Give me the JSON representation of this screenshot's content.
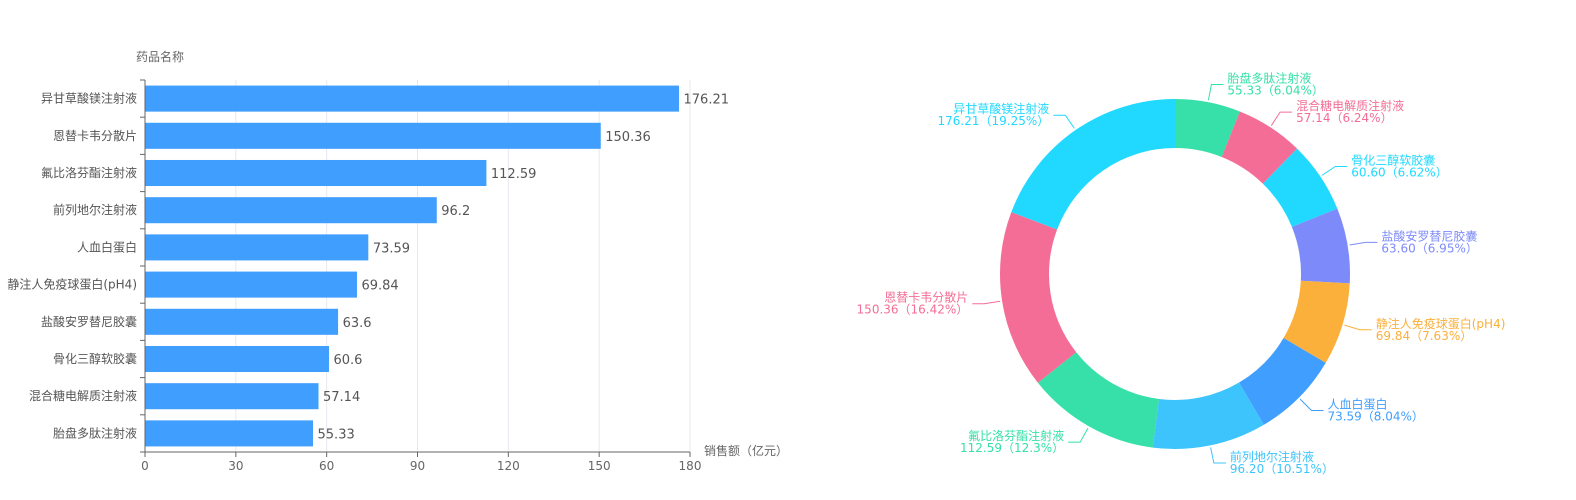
{
  "chart_data": [
    {
      "type": "bar",
      "orientation": "horizontal",
      "ylabel": "药品名称",
      "xlabel": "销售额（亿元）",
      "categories": [
        "异甘草酸镁注射液",
        "恩替卡韦分散片",
        "氟比洛芬酯注射液",
        "前列地尔注射液",
        "人血白蛋白",
        "静注人免疫球蛋白(pH4)",
        "盐酸安罗替尼胶囊",
        "骨化三醇软胶囊",
        "混合糖电解质注射液",
        "胎盘多肽注射液"
      ],
      "values": [
        176.21,
        150.36,
        112.59,
        96.2,
        73.59,
        69.84,
        63.6,
        60.6,
        57.14,
        55.33
      ],
      "value_labels": [
        "176.21",
        "150.36",
        "112.59",
        "96.2",
        "73.59",
        "69.84",
        "63.6",
        "60.6",
        "57.14",
        "55.33"
      ],
      "xlim": [
        0,
        180
      ],
      "xticks": [
        "0",
        "30",
        "60",
        "90",
        "120",
        "150",
        "180"
      ],
      "grid": true,
      "color": "#409EFF"
    },
    {
      "type": "pie",
      "variant": "donut",
      "slices": [
        {
          "name": "胎盘多肽注射液",
          "value": 55.33,
          "label": "55.33（6.04%）",
          "color": "#36E0A8"
        },
        {
          "name": "混合糖电解质注射液",
          "value": 57.14,
          "label": "57.14（6.24%）",
          "color": "#F46D96"
        },
        {
          "name": "骨化三醇软胶囊",
          "value": 60.6,
          "label": "60.60（6.62%）",
          "color": "#21D9FF"
        },
        {
          "name": "盐酸安罗替尼胶囊",
          "value": 63.6,
          "label": "63.60（6.95%）",
          "color": "#7D8BFA"
        },
        {
          "name": "静注人免疫球蛋白(pH4)",
          "value": 69.84,
          "label": "69.84（7.63%）",
          "color": "#FBB03B"
        },
        {
          "name": "人血白蛋白",
          "value": 73.59,
          "label": "73.59（8.04%）",
          "color": "#409EFF"
        },
        {
          "name": "前列地尔注射液",
          "value": 96.2,
          "label": "96.20（10.51%）",
          "color": "#3DC4FC"
        },
        {
          "name": "氟比洛芬酯注射液",
          "value": 112.59,
          "label": "112.59（12.3%）",
          "color": "#36E0A8"
        },
        {
          "name": "恩替卡韦分散片",
          "value": 150.36,
          "label": "150.36（16.42%）",
          "color": "#F46D96"
        },
        {
          "name": "异甘草酸镁注射液",
          "value": 176.21,
          "label": "176.21（19.25%）",
          "color": "#21D9FF"
        }
      ]
    }
  ]
}
